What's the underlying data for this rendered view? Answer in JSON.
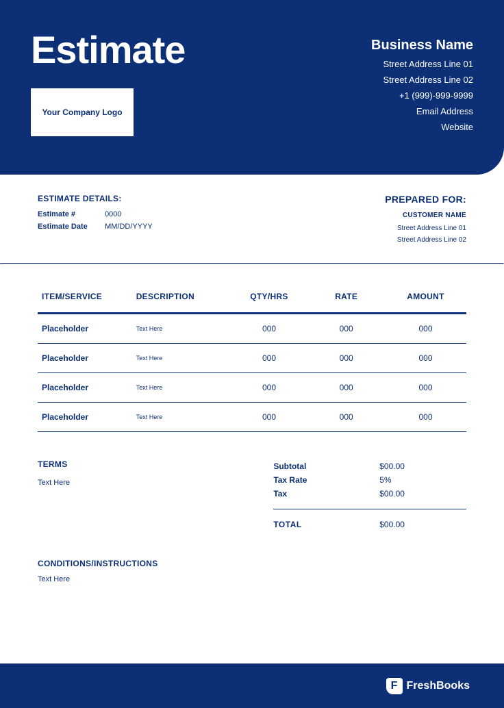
{
  "colors": {
    "primary": "#0c2f75",
    "background": "#ffffff",
    "header_text": "#ffffff"
  },
  "header": {
    "title": "Estimate",
    "logo_text": "Your Company Logo",
    "business_name": "Business Name",
    "address1": "Street Address Line 01",
    "address2": "Street Address Line 02",
    "phone": "+1 (999)-999-9999",
    "email": "Email Address",
    "website": "Website"
  },
  "details": {
    "label": "ESTIMATE DETAILS:",
    "number_label": "Estimate #",
    "number": "0000",
    "date_label": "Estimate Date",
    "date": "MM/DD/YYYY"
  },
  "prepared": {
    "label": "PREPARED FOR:",
    "customer": "CUSTOMER NAME",
    "addr1": "Street Address Line 01",
    "addr2": "Street Address Line 02"
  },
  "table": {
    "columns": [
      "ITEM/SERVICE",
      "DESCRIPTION",
      "QTY/HRS",
      "RATE",
      "AMOUNT"
    ],
    "rows": [
      {
        "item": "Placeholder",
        "desc": "Text Here",
        "qty": "000",
        "rate": "000",
        "amount": "000"
      },
      {
        "item": "Placeholder",
        "desc": "Text Here",
        "qty": "000",
        "rate": "000",
        "amount": "000"
      },
      {
        "item": "Placeholder",
        "desc": "Text Here",
        "qty": "000",
        "rate": "000",
        "amount": "000"
      },
      {
        "item": "Placeholder",
        "desc": "Text Here",
        "qty": "000",
        "rate": "000",
        "amount": "000"
      }
    ]
  },
  "terms": {
    "label": "TERMS",
    "text": "Text Here"
  },
  "totals": {
    "subtotal_label": "Subtotal",
    "subtotal": "$00.00",
    "taxrate_label": "Tax Rate",
    "taxrate": "5%",
    "tax_label": "Tax",
    "tax": "$00.00",
    "total_label": "TOTAL",
    "total": "$00.00"
  },
  "conditions": {
    "label": "CONDITIONS/INSTRUCTIONS",
    "text": "Text Here"
  },
  "footer": {
    "brand": "FreshBooks",
    "icon_letter": "F"
  }
}
